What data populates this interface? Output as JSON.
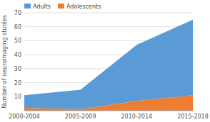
{
  "chart_data": {
    "type": "area",
    "stacked": true,
    "y_label": "Number of neuroimaging studies",
    "categories": [
      "2000-2004",
      "2005-2009",
      "2010-2014",
      "2015-2018"
    ],
    "series": [
      {
        "name": "Adolescents",
        "color": "#ED7D31",
        "values": [
          2,
          1,
          7,
          11
        ]
      },
      {
        "name": "Adults",
        "color": "#5B9BD5",
        "values": [
          9,
          14,
          40,
          54
        ]
      }
    ],
    "ylim": [
      0,
      70
    ],
    "yticks": [
      10,
      20,
      30,
      40,
      50,
      60,
      70
    ],
    "grid": true,
    "legend": "top-left"
  }
}
